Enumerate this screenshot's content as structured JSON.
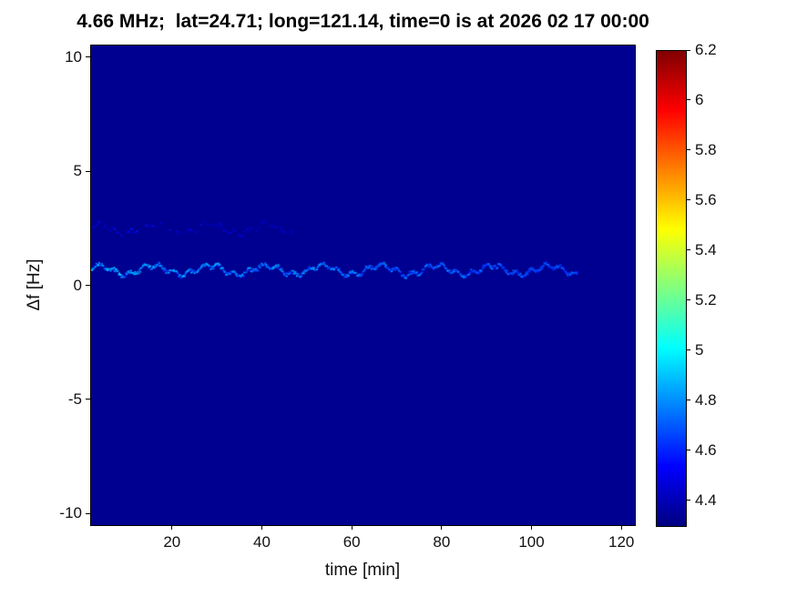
{
  "title": "4.66 MHz;  lat=24.71; long=121.14, time=0 is at 2026 02 17 00:00",
  "chart_data": {
    "type": "heatmap",
    "title": "4.66 MHz;  lat=24.71; long=121.14, time=0 is at 2026 02 17 00:00",
    "xlabel": "time [min]",
    "ylabel": "Δf [Hz]",
    "xlim": [
      2,
      123
    ],
    "ylim": [
      -10.5,
      10.5
    ],
    "x_ticks": [
      20,
      40,
      60,
      80,
      100,
      120
    ],
    "y_ticks": [
      10,
      5,
      0,
      -5,
      -10
    ],
    "colormap": "jet",
    "caxis": [
      4.3,
      6.2
    ],
    "colorbar_ticks": [
      6.2,
      6,
      5.8,
      5.6,
      5.4,
      5.2,
      5,
      4.8,
      4.6,
      4.4
    ],
    "background_value": 4.33,
    "grid": false,
    "legend": "none (colorbar on right)",
    "features": [
      {
        "name": "primary-doppler-trace",
        "y_hz": 0.7,
        "t_start_min": 2,
        "t_end_min": 110,
        "value_range": [
          4.55,
          5.0
        ],
        "description": "speckled cyan/blue horizontal trace near Δf=0.7 Hz, brightest at early times, fading after t~60 min"
      },
      {
        "name": "secondary-doppler-trace",
        "y_hz": 2.5,
        "t_start_min": 2,
        "t_end_min": 47,
        "value_range": [
          4.42,
          4.62
        ],
        "description": "very faint sparse blue speckle trace near Δf=2.5 Hz, visible only for t<~47 min"
      }
    ],
    "colors": {
      "plot_background": "#00008f",
      "page_background": "#ffffff",
      "axis_color": "#000000"
    }
  }
}
